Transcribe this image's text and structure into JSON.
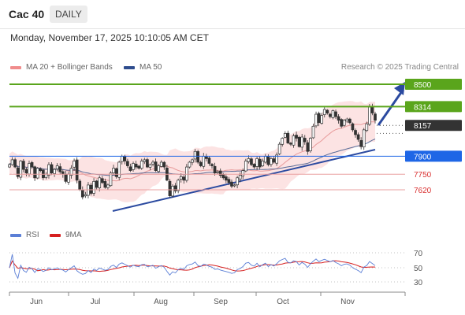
{
  "header": {
    "title": "Cac 40",
    "period": "DAILY"
  },
  "datetime": "Monday, November 17, 2025 10:10:05 AM CET",
  "legend": {
    "items": [
      {
        "label": "MA 20 + Bollinger Bands",
        "color": "#f08c8c"
      },
      {
        "label": "MA 50",
        "color": "#2f4d8e"
      }
    ],
    "credit": "Research © 2025 Trading Central"
  },
  "rsi_legend": {
    "items": [
      {
        "label": "RSI",
        "color": "#5b7fd6"
      },
      {
        "label": "9MA",
        "color": "#d62020"
      }
    ]
  },
  "colors": {
    "green": "#5aa51c",
    "blue": "#1e66e6",
    "red": "#d93030",
    "dark": "#333333",
    "trend": "#2b4aa0",
    "band": "#fbdada"
  },
  "chart_data": [
    {
      "type": "candlestick",
      "x_labels": [
        "Jun",
        "Jul",
        "Aug",
        "Sep",
        "Oct",
        "Nov"
      ],
      "ylim": [
        7400,
        8650
      ],
      "levels": [
        {
          "label": "8500",
          "value": 8500,
          "style": "resistance"
        },
        {
          "label": "8314",
          "value": 8314,
          "style": "resistance"
        },
        {
          "label": "8157",
          "value": 8157,
          "style": "last"
        },
        {
          "label": "7900",
          "value": 7900,
          "style": "pivot"
        },
        {
          "label": "7750",
          "value": 7750,
          "style": "support"
        },
        {
          "label": "7620",
          "value": 7620,
          "style": "support"
        }
      ],
      "close": [
        7830,
        7870,
        7810,
        7730,
        7860,
        7790,
        7760,
        7840,
        7810,
        7720,
        7800,
        7780,
        7720,
        7750,
        7830,
        7760,
        7790,
        7820,
        7770,
        7750,
        7690,
        7750,
        7800,
        7860,
        7700,
        7620,
        7560,
        7580,
        7660,
        7590,
        7690,
        7640,
        7720,
        7680,
        7640,
        7660,
        7760,
        7800,
        7730,
        7850,
        7900,
        7860,
        7820,
        7780,
        7840,
        7810,
        7800,
        7860,
        7870,
        7810,
        7830,
        7850,
        7780,
        7820,
        7850,
        7810,
        7700,
        7570,
        7650,
        7610,
        7700,
        7730,
        7700,
        7810,
        7850,
        7870,
        7940,
        7850,
        7820,
        7900,
        7880,
        7840,
        7820,
        7760,
        7770,
        7740,
        7720,
        7700,
        7680,
        7650,
        7660,
        7720,
        7740,
        7780,
        7860,
        7880,
        7830,
        7810,
        7880,
        7810,
        7860,
        7900,
        7830,
        7880,
        7850,
        7910,
        8000,
        8050,
        8090,
        8010,
        8000,
        8070,
        8050,
        7980,
        8060,
        8020,
        7940,
        8050,
        8150,
        8250,
        8180,
        8240,
        8290,
        8260,
        8230,
        8280,
        8230,
        8200,
        8150,
        8200,
        8210,
        8180,
        8120,
        8080,
        8040,
        7980,
        8120,
        8170,
        8310,
        8260,
        8200
      ]
    },
    {
      "type": "line",
      "series": [
        {
          "name": "RSI"
        },
        {
          "name": "9MA"
        }
      ],
      "ylim": [
        30,
        70
      ],
      "y_ticks": [
        "70",
        "50",
        "30"
      ]
    }
  ]
}
